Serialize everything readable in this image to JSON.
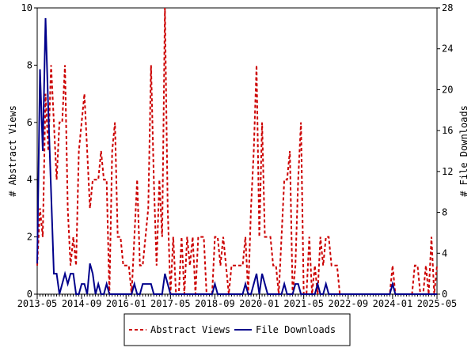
{
  "chart_data": {
    "type": "line",
    "x": [
      "2013-05",
      "2013-06",
      "2013-07",
      "2013-08",
      "2013-09",
      "2013-10",
      "2013-11",
      "2013-12",
      "2014-01",
      "2014-02",
      "2014-03",
      "2014-04",
      "2014-05",
      "2014-06",
      "2014-07",
      "2014-08",
      "2014-09",
      "2014-10",
      "2014-11",
      "2014-12",
      "2015-01",
      "2015-02",
      "2015-03",
      "2015-04",
      "2015-05",
      "2015-06",
      "2015-07",
      "2015-08",
      "2015-09",
      "2015-10",
      "2015-11",
      "2015-12",
      "2016-01",
      "2016-02",
      "2016-03",
      "2016-04",
      "2016-05",
      "2016-06",
      "2016-07",
      "2016-08",
      "2016-09",
      "2016-10",
      "2016-11",
      "2016-12",
      "2017-01",
      "2017-02",
      "2017-03",
      "2017-04",
      "2017-05",
      "2017-06",
      "2017-07",
      "2017-08",
      "2017-09",
      "2017-10",
      "2017-11",
      "2017-12",
      "2018-01",
      "2018-02",
      "2018-03",
      "2018-04",
      "2018-05",
      "2018-06",
      "2018-07",
      "2018-08",
      "2018-09",
      "2018-10",
      "2018-11",
      "2018-12",
      "2019-01",
      "2019-02",
      "2019-03",
      "2019-04",
      "2019-05",
      "2019-06",
      "2019-07",
      "2019-08",
      "2019-09",
      "2019-10",
      "2019-11",
      "2019-12",
      "2020-01",
      "2020-02",
      "2020-03",
      "2020-04",
      "2020-05",
      "2020-06",
      "2020-07",
      "2020-08",
      "2020-09",
      "2020-10",
      "2020-11",
      "2020-12",
      "2021-01",
      "2021-02",
      "2021-03",
      "2021-04",
      "2021-05",
      "2021-06",
      "2021-07",
      "2021-08",
      "2021-09",
      "2021-10",
      "2021-11",
      "2021-12",
      "2022-01",
      "2022-02",
      "2022-03",
      "2022-04",
      "2022-05",
      "2022-06",
      "2022-07",
      "2022-08",
      "2022-09",
      "2022-10",
      "2022-11",
      "2022-12",
      "2023-01",
      "2023-02",
      "2023-03",
      "2023-04",
      "2023-05",
      "2023-06",
      "2023-07",
      "2023-08",
      "2023-09",
      "2023-10",
      "2023-11",
      "2023-12",
      "2024-01",
      "2024-02",
      "2024-03",
      "2024-04",
      "2024-05",
      "2024-06",
      "2024-07",
      "2024-08",
      "2024-09",
      "2024-10",
      "2024-11",
      "2024-12",
      "2025-01",
      "2025-02",
      "2025-03",
      "2025-04",
      "2025-05"
    ],
    "xticks": [
      "2013-05",
      "2014-09",
      "2016-01",
      "2017-05",
      "2018-09",
      "2020-01",
      "2021-05",
      "2022-09",
      "2024-01",
      "2025-05"
    ],
    "ylabel": "# Abstract Views",
    "y2label": "# File Downloads",
    "ylim": [
      0,
      10
    ],
    "yticks": [
      0,
      2,
      4,
      6,
      8,
      10
    ],
    "y2lim": [
      0,
      28
    ],
    "y2ticks": [
      0,
      4,
      8,
      12,
      16,
      20,
      24,
      28
    ],
    "series": [
      {
        "name": "Abstract Views",
        "color": "#cc0000",
        "dash": true,
        "values": [
          1,
          3,
          2,
          7,
          5,
          8,
          6,
          4,
          6,
          6,
          8,
          3,
          1,
          2,
          1,
          5,
          6,
          7,
          5,
          3,
          4,
          4,
          4,
          5,
          4,
          4,
          0,
          5,
          6,
          2,
          2,
          1,
          1,
          1,
          0,
          2,
          4,
          1,
          1,
          2,
          3,
          8,
          4,
          1,
          4,
          2,
          10,
          3,
          0,
          2,
          0,
          0,
          2,
          0,
          2,
          1,
          2,
          0,
          2,
          2,
          2,
          0,
          0,
          0,
          2,
          2,
          1,
          2,
          1,
          0,
          1,
          1,
          1,
          1,
          1,
          2,
          0,
          3,
          5,
          8,
          2,
          6,
          2,
          2,
          2,
          1,
          1,
          0,
          2,
          4,
          4,
          5,
          0,
          1,
          4,
          6,
          0,
          0,
          2,
          0,
          1,
          0,
          2,
          1,
          2,
          2,
          1,
          1,
          1,
          0,
          0,
          0,
          0,
          0,
          0,
          0,
          0,
          0,
          0,
          0,
          0,
          0,
          0,
          0,
          0,
          0,
          0,
          0,
          1,
          0,
          0,
          0,
          0,
          0,
          0,
          0,
          1,
          1,
          0,
          0,
          1,
          0,
          2,
          0,
          1
        ]
      },
      {
        "name": "File Downloads",
        "color": "#00008b",
        "axis": "y2",
        "values": [
          3,
          22,
          14,
          27,
          18,
          10,
          2,
          2,
          0,
          1,
          2,
          1,
          2,
          2,
          0,
          0,
          1,
          1,
          0,
          3,
          2,
          0,
          1,
          0,
          0,
          1,
          0,
          0,
          0,
          0,
          0,
          0,
          0,
          0,
          0,
          1,
          0,
          0,
          1,
          1,
          1,
          1,
          0,
          0,
          0,
          0,
          2,
          1,
          0,
          0,
          0,
          0,
          0,
          0,
          0,
          0,
          0,
          0,
          0,
          0,
          0,
          0,
          0,
          0,
          1,
          0,
          0,
          0,
          0,
          0,
          0,
          0,
          0,
          0,
          0,
          1,
          0,
          0,
          1,
          2,
          0,
          2,
          1,
          0,
          0,
          0,
          0,
          0,
          0,
          1,
          0,
          0,
          0,
          1,
          1,
          0,
          0,
          0,
          0,
          0,
          0,
          1,
          0,
          0,
          1,
          0,
          0,
          0,
          0,
          0,
          0,
          0,
          0,
          0,
          0,
          0,
          0,
          0,
          0,
          0,
          0,
          0,
          0,
          0,
          0,
          0,
          0,
          0,
          1,
          0,
          0,
          0,
          0,
          0,
          0,
          0,
          0,
          0,
          0,
          0,
          0,
          0,
          0,
          0,
          0
        ]
      }
    ]
  }
}
